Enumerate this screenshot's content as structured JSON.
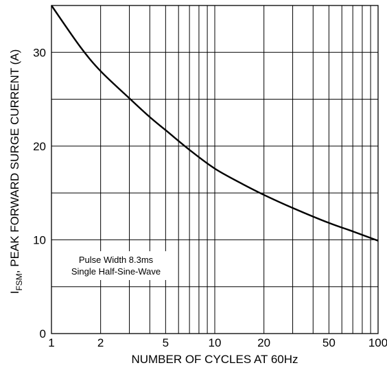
{
  "chart_data": {
    "type": "line",
    "xlabel": "NUMBER OF CYCLES AT 60Hz",
    "ylabel_main": "I",
    "ylabel_sub": "FSM",
    "ylabel_rest": ", PEAK FORWARD SURGE CURRENT (A)",
    "x_scale": "log",
    "xlim": [
      1,
      100
    ],
    "ylim": [
      0,
      35
    ],
    "grid": true,
    "x_ticks": [
      1,
      2,
      5,
      10,
      20,
      50,
      100
    ],
    "x_tick_labels": [
      "1",
      "2",
      "5",
      "10",
      "20",
      "50",
      "100"
    ],
    "y_ticks": [
      0,
      10,
      20,
      30
    ],
    "y_tick_labels": [
      "0",
      "10",
      "20",
      "30"
    ],
    "annotation": [
      "Pulse Width 8.3ms",
      "Single Half-Sine-Wave"
    ],
    "series": [
      {
        "x": [
          1,
          1.5,
          2,
          3,
          4,
          5,
          7,
          10,
          15,
          20,
          30,
          50,
          70,
          100
        ],
        "y": [
          35,
          30.6,
          28,
          25.1,
          23.1,
          21.7,
          19.6,
          17.6,
          15.9,
          14.8,
          13.4,
          11.8,
          10.9,
          9.9
        ]
      }
    ]
  }
}
